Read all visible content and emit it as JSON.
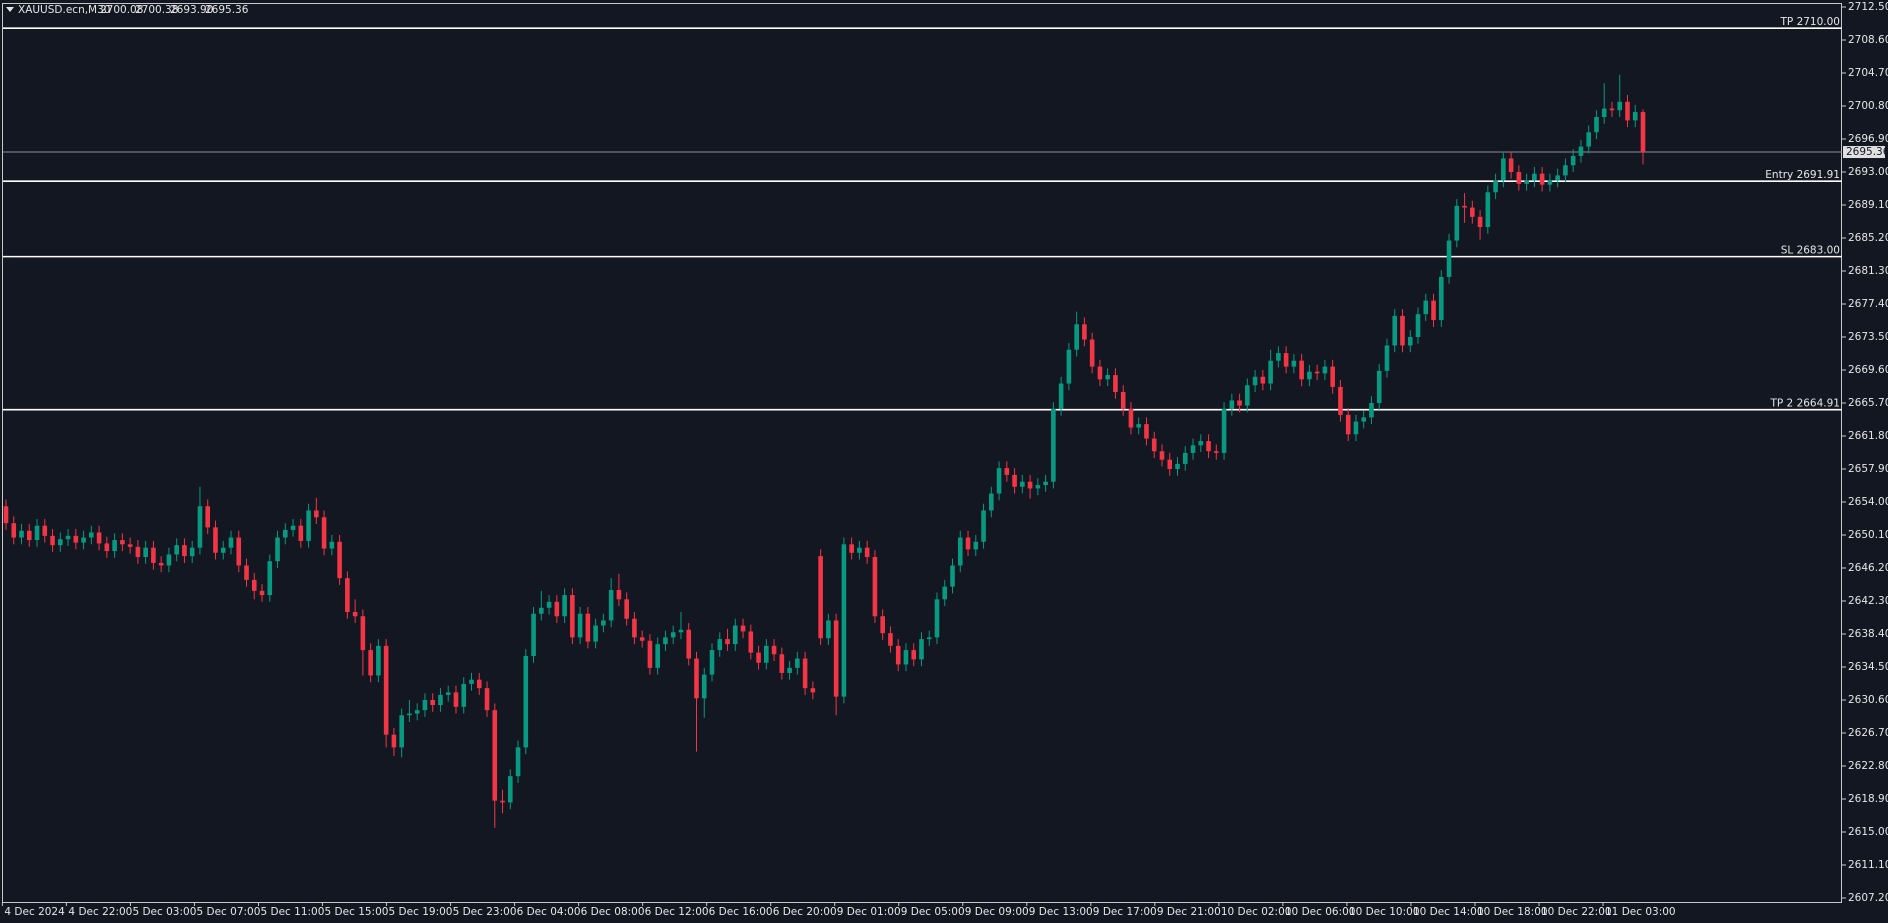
{
  "chart_data": {
    "type": "candlestick",
    "symbol": "XAUUSD.ecn,M30",
    "header_ohlc": [
      "2700.08",
      "2700.38",
      "2693.90",
      "2695.36"
    ],
    "up_color": "#089981",
    "down_color": "#f23645",
    "grid": false,
    "ylim": [
      2607.2,
      2712.5
    ],
    "yticks": [
      {
        "value": 2712.5,
        "label": "2712.50"
      },
      {
        "value": 2708.6,
        "label": "2708.60"
      },
      {
        "value": 2704.7,
        "label": "2704.70"
      },
      {
        "value": 2700.8,
        "label": "2700.80"
      },
      {
        "value": 2696.9,
        "label": "2696.90"
      },
      {
        "value": 2693.0,
        "label": "2693.00"
      },
      {
        "value": 2689.1,
        "label": "2689.10"
      },
      {
        "value": 2685.2,
        "label": "2685.20"
      },
      {
        "value": 2681.3,
        "label": "2681.30"
      },
      {
        "value": 2677.4,
        "label": "2677.40"
      },
      {
        "value": 2673.5,
        "label": "2673.50"
      },
      {
        "value": 2669.6,
        "label": "2669.60"
      },
      {
        "value": 2665.7,
        "label": "2665.70"
      },
      {
        "value": 2661.8,
        "label": "2661.80"
      },
      {
        "value": 2657.9,
        "label": "2657.90"
      },
      {
        "value": 2654.0,
        "label": "2654.00"
      },
      {
        "value": 2650.1,
        "label": "2650.10"
      },
      {
        "value": 2646.2,
        "label": "2646.20"
      },
      {
        "value": 2642.3,
        "label": "2642.30"
      },
      {
        "value": 2638.4,
        "label": "2638.40"
      },
      {
        "value": 2634.5,
        "label": "2634.50"
      },
      {
        "value": 2630.6,
        "label": "2630.60"
      },
      {
        "value": 2626.7,
        "label": "2626.70"
      },
      {
        "value": 2622.8,
        "label": "2622.80"
      },
      {
        "value": 2618.9,
        "label": "2618.90"
      },
      {
        "value": 2615.0,
        "label": "2615.00"
      },
      {
        "value": 2611.1,
        "label": "2611.10"
      },
      {
        "value": 2607.2,
        "label": "2607.20"
      }
    ],
    "time_labels": [
      "4 Dec 2024",
      "4 Dec 22:00",
      "5 Dec 03:00",
      "5 Dec 07:00",
      "5 Dec 11:00",
      "5 Dec 15:00",
      "5 Dec 19:00",
      "5 Dec 23:00",
      "6 Dec 04:00",
      "6 Dec 08:00",
      "6 Dec 12:00",
      "6 Dec 16:00",
      "6 Dec 20:00",
      "9 Dec 01:00",
      "9 Dec 05:00",
      "9 Dec 09:00",
      "9 Dec 13:00",
      "9 Dec 17:00",
      "9 Dec 21:00",
      "10 Dec 02:00",
      "10 Dec 06:00",
      "10 Dec 10:00",
      "10 Dec 14:00",
      "10 Dec 18:00",
      "10 Dec 22:00",
      "11 Dec 03:00"
    ],
    "levels": [
      {
        "label": "TP 2710.00",
        "value": 2710.0
      },
      {
        "label": "Entry 2691.91",
        "value": 2691.91
      },
      {
        "label": "SL 2683.00",
        "value": 2683.0
      },
      {
        "label": "TP 2 2664.91",
        "value": 2664.91
      }
    ],
    "bid": {
      "value": 2695.36,
      "label": "2695.36"
    },
    "open": [
      2653.5,
      2651.5,
      2649.8,
      2650.6,
      2649.5,
      2651.2,
      2650.0,
      2648.9,
      2649.6,
      2650.0,
      2649.2,
      2649.8,
      2650.4,
      2649.1,
      2648.2,
      2649.5,
      2649.0,
      2648.7,
      2647.5,
      2648.6,
      2646.8,
      2646.5,
      2647.8,
      2648.9,
      2647.6,
      2648.6,
      2653.5,
      2651.0,
      2648.0,
      2648.6,
      2649.8,
      2646.5,
      2644.8,
      2643.5,
      2643.0,
      2647.0,
      2649.8,
      2650.7,
      2651.2,
      2649.4,
      2653.0,
      2652.2,
      2648.5,
      2649.3,
      2645.0,
      2641.0,
      2640.5,
      2636.5,
      2633.5,
      2637.0,
      2626.5,
      2625.0,
      2628.8,
      2629.0,
      2629.4,
      2630.6,
      2630.0,
      2631.2,
      2631.5,
      2629.8,
      2632.5,
      2633.0,
      2632.0,
      2629.4,
      2618.7,
      2618.5,
      2621.6,
      2625.0,
      2635.8,
      2640.8,
      2641.5,
      2642.2,
      2640.5,
      2643.0,
      2638.0,
      2640.8,
      2637.5,
      2639.4,
      2640.0,
      2643.6,
      2642.5,
      2640.2,
      2638.0,
      2637.6,
      2634.4,
      2637.2,
      2638.0,
      2638.6,
      2638.9,
      2635.5,
      2630.8,
      2633.6,
      2636.5,
      2637.8,
      2637.2,
      2639.4,
      2638.7,
      2636.2,
      2635.0,
      2637.0,
      2636.0,
      2633.8,
      2634.4,
      2635.5,
      2632.0,
      2647.6,
      2637.9,
      2640.0,
      2631.0,
      2649.0,
      2648.0,
      2648.6,
      2647.5,
      2640.5,
      2638.5,
      2637.0,
      2634.8,
      2636.5,
      2635.4,
      2637.8,
      2638.0,
      2642.5,
      2644.0,
      2646.5,
      2649.8,
      2648.4,
      2649.3,
      2653.0,
      2655.0,
      2658.0,
      2657.2,
      2655.8,
      2656.4,
      2655.6,
      2656.0,
      2656.4,
      2665.0,
      2668.0,
      2672.0,
      2675.0,
      2673.2,
      2670.0,
      2668.5,
      2669.0,
      2667.0,
      2665.0,
      2662.8,
      2663.2,
      2661.5,
      2660.0,
      2659.0,
      2657.9,
      2658.5,
      2659.8,
      2660.7,
      2661.2,
      2660.0,
      2659.8,
      2665.0,
      2666.0,
      2665.4,
      2667.8,
      2668.8,
      2668.0,
      2670.7,
      2671.6,
      2670.0,
      2670.7,
      2668.5,
      2669.4,
      2669.2,
      2670.0,
      2667.6,
      2664.3,
      2662.0,
      2663.5,
      2664.0,
      2665.7,
      2669.5,
      2672.5,
      2676.0,
      2672.5,
      2673.5,
      2676.2,
      2677.8,
      2675.5,
      2680.6,
      2684.9,
      2689.0,
      2688.8,
      2687.7,
      2686.5,
      2690.6,
      2692.0,
      2694.6,
      2693.0,
      2691.6,
      2692.0,
      2692.8,
      2691.5,
      2692.0,
      2692.6,
      2693.8,
      2694.9,
      2696.0,
      2697.7,
      2699.5,
      2700.5,
      2700.3,
      2701.3,
      2699.1,
      2700.08
    ],
    "high": [
      2654.3,
      2652.3,
      2651.4,
      2651.4,
      2652.0,
      2652.0,
      2650.8,
      2650.4,
      2650.8,
      2650.8,
      2650.6,
      2651.2,
      2651.2,
      2649.9,
      2650.3,
      2650.3,
      2649.8,
      2649.5,
      2649.4,
      2649.4,
      2647.6,
      2648.6,
      2649.7,
      2649.7,
      2649.4,
      2655.8,
      2654.3,
      2651.8,
      2649.4,
      2650.6,
      2650.6,
      2647.3,
      2645.6,
      2644.3,
      2647.8,
      2650.6,
      2651.5,
      2652.0,
      2652.0,
      2653.8,
      2654.5,
      2653.0,
      2650.1,
      2650.1,
      2645.8,
      2642.5,
      2641.3,
      2637.3,
      2637.8,
      2637.8,
      2627.3,
      2629.6,
      2630.6,
      2630.2,
      2631.4,
      2631.4,
      2632.0,
      2632.3,
      2632.3,
      2633.3,
      2633.8,
      2633.8,
      2632.8,
      2630.2,
      2620.0,
      2622.4,
      2625.8,
      2636.6,
      2641.6,
      2643.5,
      2643.0,
      2643.0,
      2643.8,
      2643.8,
      2641.6,
      2641.6,
      2640.2,
      2640.8,
      2645.0,
      2645.5,
      2643.3,
      2641.0,
      2638.8,
      2638.4,
      2638.0,
      2638.8,
      2639.4,
      2641.0,
      2639.7,
      2636.3,
      2634.4,
      2637.3,
      2638.6,
      2639.0,
      2640.2,
      2640.2,
      2639.5,
      2637.0,
      2637.8,
      2637.8,
      2636.8,
      2635.2,
      2636.3,
      2636.3,
      2632.8,
      2648.4,
      2640.8,
      2640.8,
      2649.8,
      2649.8,
      2649.4,
      2649.4,
      2648.3,
      2641.3,
      2639.3,
      2637.8,
      2637.3,
      2637.3,
      2638.6,
      2638.8,
      2643.3,
      2644.8,
      2647.3,
      2650.6,
      2650.6,
      2650.1,
      2653.8,
      2655.8,
      2658.8,
      2658.8,
      2658.0,
      2657.2,
      2657.2,
      2656.8,
      2657.2,
      2665.8,
      2668.8,
      2672.8,
      2676.5,
      2675.8,
      2674.0,
      2670.8,
      2669.8,
      2669.8,
      2667.8,
      2665.8,
      2664.0,
      2664.0,
      2662.3,
      2660.8,
      2659.8,
      2659.3,
      2660.6,
      2661.5,
      2662.0,
      2662.0,
      2660.8,
      2665.8,
      2666.8,
      2666.8,
      2668.6,
      2669.6,
      2669.6,
      2672.0,
      2672.4,
      2672.4,
      2671.5,
      2671.5,
      2670.2,
      2670.2,
      2670.8,
      2670.8,
      2668.4,
      2665.1,
      2664.3,
      2664.8,
      2666.5,
      2670.3,
      2673.3,
      2676.8,
      2676.8,
      2674.3,
      2677.0,
      2678.6,
      2678.6,
      2681.4,
      2685.7,
      2689.8,
      2690.5,
      2689.6,
      2688.5,
      2691.4,
      2692.8,
      2695.4,
      2695.4,
      2693.8,
      2692.8,
      2693.6,
      2693.6,
      2692.8,
      2693.4,
      2694.6,
      2695.7,
      2696.8,
      2698.5,
      2700.3,
      2703.5,
      2701.3,
      2704.5,
      2702.1,
      2700.9,
      2700.38
    ],
    "low": [
      2650.7,
      2649.0,
      2649.0,
      2648.7,
      2648.7,
      2649.2,
      2648.1,
      2648.1,
      2648.8,
      2648.4,
      2648.4,
      2649.0,
      2648.3,
      2647.4,
      2647.4,
      2648.2,
      2647.9,
      2646.7,
      2646.7,
      2646.0,
      2645.7,
      2645.7,
      2647.0,
      2646.8,
      2646.8,
      2647.8,
      2650.2,
      2647.2,
      2647.2,
      2647.8,
      2645.7,
      2644.0,
      2642.5,
      2642.2,
      2642.2,
      2646.2,
      2649.0,
      2649.9,
      2648.6,
      2648.6,
      2651.4,
      2647.7,
      2647.7,
      2644.2,
      2640.2,
      2639.7,
      2633.5,
      2632.7,
      2632.7,
      2625.0,
      2624.0,
      2623.8,
      2628.0,
      2628.2,
      2628.6,
      2629.2,
      2629.2,
      2630.4,
      2629.0,
      2629.0,
      2631.7,
      2631.2,
      2628.6,
      2615.5,
      2617.2,
      2617.7,
      2620.8,
      2624.2,
      2635.0,
      2640.0,
      2640.7,
      2639.7,
      2639.7,
      2637.2,
      2637.2,
      2636.7,
      2636.7,
      2638.6,
      2639.2,
      2641.7,
      2639.4,
      2637.2,
      2636.8,
      2633.6,
      2633.6,
      2636.4,
      2637.2,
      2637.8,
      2634.7,
      2624.5,
      2628.5,
      2632.8,
      2635.7,
      2636.4,
      2636.4,
      2637.9,
      2635.4,
      2634.2,
      2634.2,
      2635.2,
      2633.0,
      2633.0,
      2633.6,
      2631.2,
      2630.7,
      2637.1,
      2637.1,
      2628.8,
      2630.2,
      2647.2,
      2647.2,
      2646.7,
      2639.7,
      2637.7,
      2636.2,
      2634.0,
      2634.0,
      2634.6,
      2634.6,
      2637.0,
      2637.2,
      2641.7,
      2643.2,
      2645.7,
      2647.6,
      2647.6,
      2648.5,
      2652.2,
      2654.2,
      2656.4,
      2655.0,
      2655.0,
      2654.4,
      2654.8,
      2655.2,
      2655.6,
      2664.2,
      2667.2,
      2671.2,
      2672.4,
      2669.2,
      2667.7,
      2667.7,
      2666.2,
      2664.2,
      2662.0,
      2662.0,
      2660.7,
      2659.2,
      2658.2,
      2657.1,
      2657.1,
      2657.7,
      2659.0,
      2659.9,
      2659.2,
      2659.0,
      2659.0,
      2664.2,
      2664.6,
      2664.6,
      2667.0,
      2667.2,
      2667.2,
      2669.9,
      2669.2,
      2669.2,
      2667.7,
      2667.7,
      2668.4,
      2668.4,
      2666.8,
      2663.5,
      2661.2,
      2661.2,
      2662.7,
      2663.2,
      2664.9,
      2668.7,
      2671.7,
      2671.7,
      2671.7,
      2672.7,
      2675.4,
      2674.7,
      2674.7,
      2679.8,
      2684.1,
      2687.0,
      2686.9,
      2685.0,
      2685.7,
      2689.8,
      2691.2,
      2692.2,
      2690.8,
      2690.8,
      2691.2,
      2690.7,
      2690.7,
      2691.2,
      2691.8,
      2693.0,
      2694.1,
      2695.2,
      2696.9,
      2698.7,
      2699.5,
      2699.5,
      2698.3,
      2698.3,
      2693.9
    ],
    "close": [
      2651.5,
      2649.8,
      2650.6,
      2649.5,
      2651.2,
      2650.0,
      2648.9,
      2649.6,
      2650.0,
      2649.2,
      2649.8,
      2650.4,
      2649.1,
      2648.2,
      2649.5,
      2649.0,
      2648.7,
      2647.5,
      2648.6,
      2646.8,
      2646.5,
      2647.8,
      2648.9,
      2647.6,
      2648.6,
      2653.5,
      2651.0,
      2648.0,
      2648.6,
      2649.8,
      2646.5,
      2644.8,
      2643.5,
      2643.0,
      2647.0,
      2649.8,
      2650.7,
      2651.2,
      2649.4,
      2653.0,
      2652.2,
      2648.5,
      2649.3,
      2645.0,
      2641.0,
      2640.5,
      2636.5,
      2633.5,
      2637.0,
      2626.5,
      2625.0,
      2628.8,
      2629.0,
      2629.4,
      2630.6,
      2630.0,
      2631.2,
      2631.5,
      2629.8,
      2632.5,
      2633.0,
      2632.0,
      2629.4,
      2618.7,
      2618.5,
      2621.6,
      2625.0,
      2635.8,
      2640.8,
      2641.5,
      2642.2,
      2640.5,
      2643.0,
      2638.0,
      2640.8,
      2637.5,
      2639.4,
      2640.0,
      2643.6,
      2642.5,
      2640.2,
      2638.0,
      2637.6,
      2634.4,
      2637.2,
      2638.0,
      2638.6,
      2638.9,
      2635.5,
      2630.8,
      2633.6,
      2636.5,
      2637.8,
      2637.2,
      2639.4,
      2638.7,
      2636.2,
      2635.0,
      2637.0,
      2636.0,
      2633.8,
      2634.4,
      2635.5,
      2632.0,
      2631.5,
      2637.9,
      2640.0,
      2631.0,
      2649.0,
      2648.0,
      2648.6,
      2647.5,
      2640.5,
      2638.5,
      2637.0,
      2634.8,
      2636.5,
      2635.4,
      2637.8,
      2638.0,
      2642.5,
      2644.0,
      2646.5,
      2649.8,
      2648.4,
      2649.3,
      2653.0,
      2655.0,
      2658.0,
      2657.2,
      2655.8,
      2656.4,
      2655.6,
      2656.0,
      2656.4,
      2665.0,
      2668.0,
      2672.0,
      2675.0,
      2673.2,
      2670.0,
      2668.5,
      2669.0,
      2667.0,
      2665.0,
      2662.8,
      2663.2,
      2661.5,
      2660.0,
      2659.0,
      2657.9,
      2658.5,
      2659.8,
      2660.7,
      2661.2,
      2660.0,
      2659.8,
      2665.0,
      2666.0,
      2665.4,
      2667.8,
      2668.8,
      2668.0,
      2670.7,
      2671.6,
      2670.0,
      2670.7,
      2668.5,
      2669.4,
      2669.2,
      2670.0,
      2667.6,
      2664.3,
      2662.0,
      2663.5,
      2664.0,
      2665.7,
      2669.5,
      2672.5,
      2676.0,
      2672.5,
      2673.5,
      2676.2,
      2677.8,
      2675.5,
      2680.6,
      2684.9,
      2689.0,
      2688.8,
      2687.7,
      2686.5,
      2690.6,
      2692.0,
      2694.6,
      2693.0,
      2691.6,
      2692.0,
      2692.8,
      2691.5,
      2692.0,
      2692.6,
      2693.8,
      2694.9,
      2696.0,
      2697.7,
      2699.5,
      2700.5,
      2700.3,
      2701.3,
      2699.1,
      2700.08,
      2695.36
    ]
  }
}
